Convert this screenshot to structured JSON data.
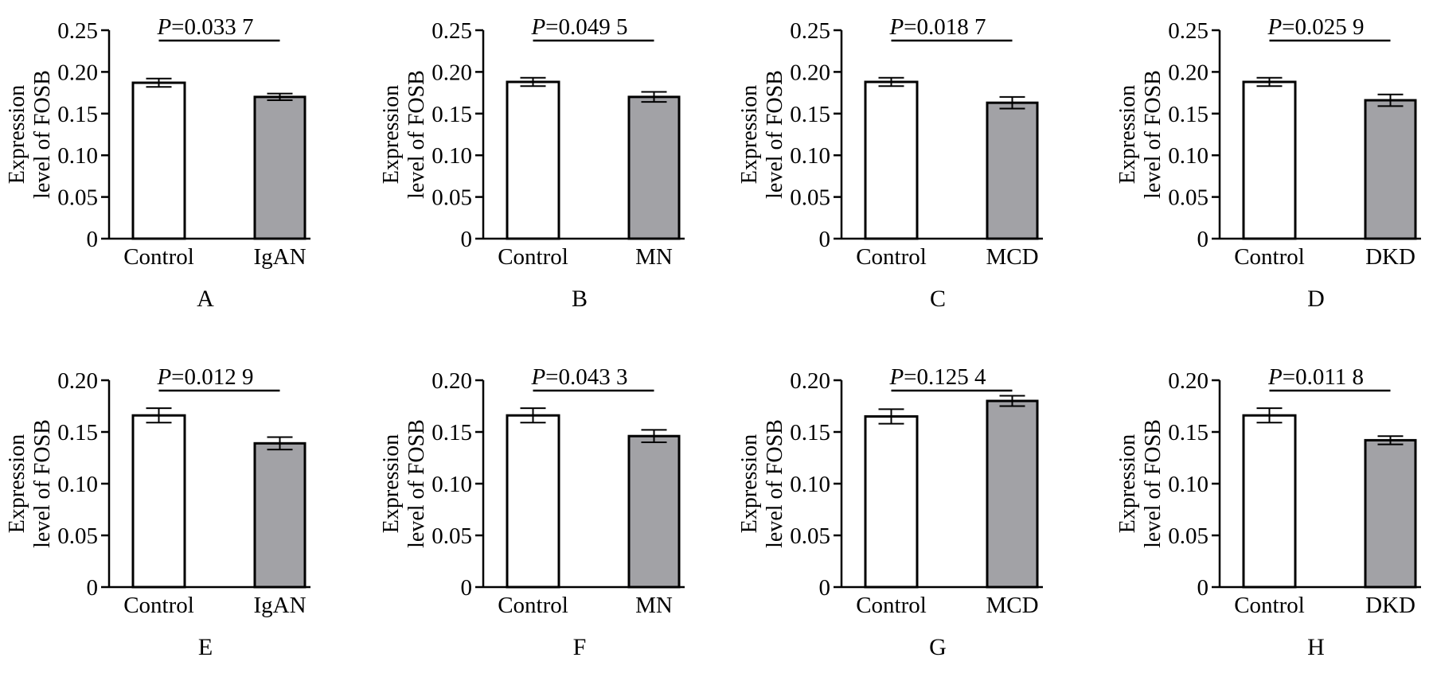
{
  "figure": {
    "colors": {
      "control_fill": "#ffffff",
      "disease_fill": "#a2a2a6",
      "stroke": "#000000"
    }
  },
  "chart_data": [
    {
      "type": "bar",
      "panel": "A",
      "categories": [
        "Control",
        "IgAN"
      ],
      "values": [
        0.187,
        0.17
      ],
      "errors": [
        0.005,
        0.004
      ],
      "ylabel_lines": [
        "Expression",
        "level of FOSB"
      ],
      "ylim": [
        0,
        0.25
      ],
      "yticks": [
        "0",
        "0.05",
        "0.10",
        "0.15",
        "0.20",
        "0.25"
      ],
      "p_italic": "P",
      "p_rest": "=0.033 7"
    },
    {
      "type": "bar",
      "panel": "B",
      "categories": [
        "Control",
        "MN"
      ],
      "values": [
        0.188,
        0.17
      ],
      "errors": [
        0.005,
        0.006
      ],
      "ylabel_lines": [
        "Expression",
        "level of FOSB"
      ],
      "ylim": [
        0,
        0.25
      ],
      "yticks": [
        "0",
        "0.05",
        "0.10",
        "0.15",
        "0.20",
        "0.25"
      ],
      "p_italic": "P",
      "p_rest": "=0.049 5"
    },
    {
      "type": "bar",
      "panel": "C",
      "categories": [
        "Control",
        "MCD"
      ],
      "values": [
        0.188,
        0.163
      ],
      "errors": [
        0.005,
        0.007
      ],
      "ylabel_lines": [
        "Expression",
        "level of FOSB"
      ],
      "ylim": [
        0,
        0.25
      ],
      "yticks": [
        "0",
        "0.05",
        "0.10",
        "0.15",
        "0.20",
        "0.25"
      ],
      "p_italic": "P",
      "p_rest": "=0.018 7"
    },
    {
      "type": "bar",
      "panel": "D",
      "categories": [
        "Control",
        "DKD"
      ],
      "values": [
        0.188,
        0.166
      ],
      "errors": [
        0.005,
        0.007
      ],
      "ylabel_lines": [
        "Expression",
        "level of FOSB"
      ],
      "ylim": [
        0,
        0.25
      ],
      "yticks": [
        "0",
        "0.05",
        "0.10",
        "0.15",
        "0.20",
        "0.25"
      ],
      "p_italic": "P",
      "p_rest": "=0.025 9"
    },
    {
      "type": "bar",
      "panel": "E",
      "categories": [
        "Control",
        "IgAN"
      ],
      "values": [
        0.166,
        0.139
      ],
      "errors": [
        0.007,
        0.006
      ],
      "ylabel_lines": [
        "Expression",
        "level of FOSB"
      ],
      "ylim": [
        0,
        0.2
      ],
      "yticks": [
        "0",
        "0.05",
        "0.10",
        "0.15",
        "0.20"
      ],
      "p_italic": "P",
      "p_rest": "=0.012 9"
    },
    {
      "type": "bar",
      "panel": "F",
      "categories": [
        "Control",
        "MN"
      ],
      "values": [
        0.166,
        0.146
      ],
      "errors": [
        0.007,
        0.006
      ],
      "ylabel_lines": [
        "Expression",
        "level of FOSB"
      ],
      "ylim": [
        0,
        0.2
      ],
      "yticks": [
        "0",
        "0.05",
        "0.10",
        "0.15",
        "0.20"
      ],
      "p_italic": "P",
      "p_rest": "=0.043 3"
    },
    {
      "type": "bar",
      "panel": "G",
      "categories": [
        "Control",
        "MCD"
      ],
      "values": [
        0.165,
        0.18
      ],
      "errors": [
        0.007,
        0.005
      ],
      "ylabel_lines": [
        "Expression",
        "level of FOSB"
      ],
      "ylim": [
        0,
        0.2
      ],
      "yticks": [
        "0",
        "0.05",
        "0.10",
        "0.15",
        "0.20"
      ],
      "p_italic": "P",
      "p_rest": "=0.125 4"
    },
    {
      "type": "bar",
      "panel": "H",
      "categories": [
        "Control",
        "DKD"
      ],
      "values": [
        0.166,
        0.142
      ],
      "errors": [
        0.007,
        0.004
      ],
      "ylabel_lines": [
        "Expression",
        "level of FOSB"
      ],
      "ylim": [
        0,
        0.2
      ],
      "yticks": [
        "0",
        "0.05",
        "0.10",
        "0.15",
        "0.20"
      ],
      "p_italic": "P",
      "p_rest": "=0.011 8"
    }
  ]
}
